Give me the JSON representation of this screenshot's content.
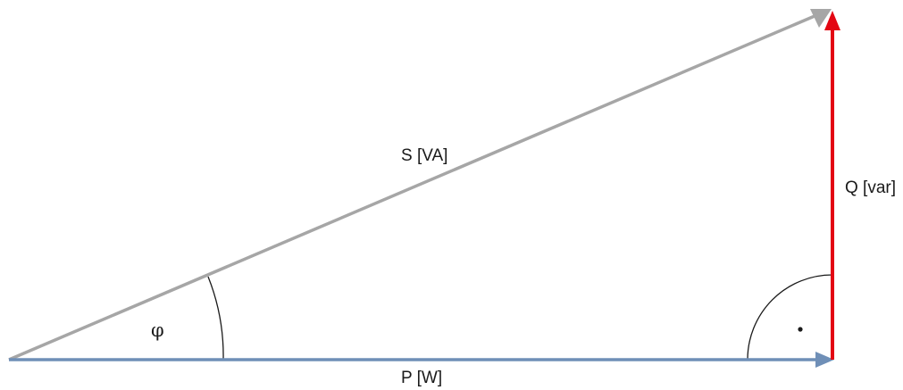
{
  "diagram": {
    "labels": {
      "apparent_power": "S [VA]",
      "reactive_power": "Q [var]",
      "active_power": "P [W]",
      "angle": "φ"
    },
    "colors": {
      "apparent_power": "#a6a6a6",
      "reactive_power": "#e30613",
      "active_power": "#6f8fb7",
      "arcs": "#1a1a1a"
    }
  }
}
